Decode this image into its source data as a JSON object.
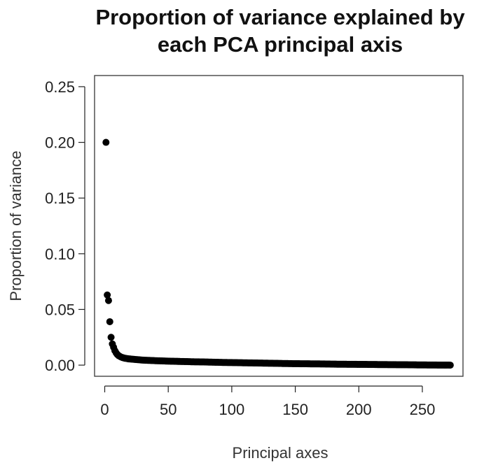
{
  "chart_data": {
    "type": "scatter",
    "title_line1": "Proportion of variance explained by",
    "title_line2": "each PCA principal axis",
    "xlabel": "Principal axes",
    "ylabel": "Proportion of variance",
    "xlim": [
      -8,
      282
    ],
    "ylim": [
      -0.01,
      0.26
    ],
    "x_ticks": [
      0,
      50,
      100,
      150,
      200,
      250
    ],
    "y_ticks": [
      0.0,
      0.05,
      0.1,
      0.15,
      0.2,
      0.25
    ],
    "x_tick_labels": [
      "0",
      "50",
      "100",
      "150",
      "200",
      "250"
    ],
    "y_tick_labels": [
      "0.00",
      "0.05",
      "0.10",
      "0.15",
      "0.20",
      "0.25"
    ],
    "grid": false,
    "point_color": "#000000",
    "n_points": 272,
    "x": [
      1,
      2,
      3,
      4,
      5,
      6,
      7,
      8,
      9,
      10,
      11,
      12,
      13,
      14,
      15,
      16,
      17,
      18,
      19,
      20,
      25,
      30,
      40,
      50,
      60,
      70,
      80,
      90,
      100,
      110,
      120,
      130,
      140,
      150,
      160,
      170,
      180,
      190,
      200,
      210,
      220,
      230,
      240,
      250,
      260,
      272
    ],
    "y": [
      0.2,
      0.063,
      0.058,
      0.039,
      0.025,
      0.019,
      0.016,
      0.013,
      0.011,
      0.0095,
      0.0085,
      0.0078,
      0.0072,
      0.0068,
      0.0065,
      0.0062,
      0.006,
      0.0058,
      0.0056,
      0.0055,
      0.005,
      0.0045,
      0.004,
      0.0036,
      0.0033,
      0.003,
      0.0028,
      0.0025,
      0.0023,
      0.0021,
      0.0019,
      0.0017,
      0.0015,
      0.0013,
      0.0012,
      0.0011,
      0.0009,
      0.0008,
      0.0007,
      0.0006,
      0.0005,
      0.0004,
      0.0003,
      0.0002,
      0.0001,
      0.0
    ]
  }
}
